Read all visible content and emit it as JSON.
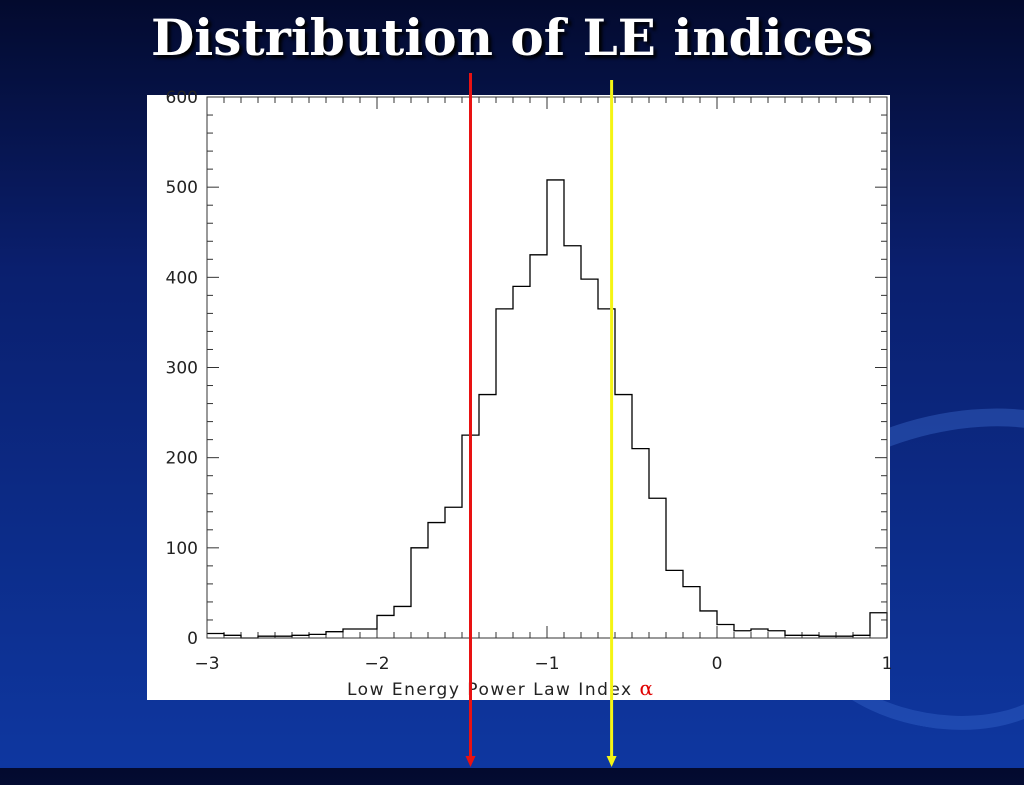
{
  "slide": {
    "title": "Distribution of LE indices"
  },
  "colors": {
    "background": "#0e37a0",
    "plot_background": "#ffffff",
    "histogram": "#000000",
    "red_marker": "#e81212",
    "yellow_marker": "#f4f414",
    "alpha_symbol": "#e00000"
  },
  "chart_data": {
    "type": "bar",
    "style": "step-histogram",
    "xlabel": "Low Energy Power Law Index",
    "xlabel_symbol": "α",
    "ylabel": "",
    "xlim": [
      -3,
      1
    ],
    "ylim": [
      0,
      600
    ],
    "xticks": [
      -3,
      -2,
      -1,
      0,
      1
    ],
    "xtick_labels": [
      "−3",
      "−2",
      "−1",
      "0",
      "1"
    ],
    "yticks": [
      0,
      100,
      200,
      300,
      400,
      500,
      600
    ],
    "ytick_labels": [
      "0",
      "100",
      "200",
      "300",
      "400",
      "500",
      "600"
    ],
    "bin_width": 0.1,
    "bin_edges_start": -3.0,
    "counts": [
      5,
      3,
      0,
      2,
      2,
      3,
      4,
      7,
      10,
      10,
      25,
      35,
      100,
      128,
      145,
      225,
      270,
      365,
      390,
      425,
      508,
      435,
      398,
      365,
      270,
      210,
      155,
      75,
      57,
      30,
      15,
      8,
      10,
      8,
      3,
      3,
      2,
      2,
      3,
      28
    ],
    "markers": [
      {
        "x": -1.45,
        "color": "red"
      },
      {
        "x": -0.62,
        "color": "yellow"
      }
    ],
    "grid": false,
    "legend": "none"
  }
}
